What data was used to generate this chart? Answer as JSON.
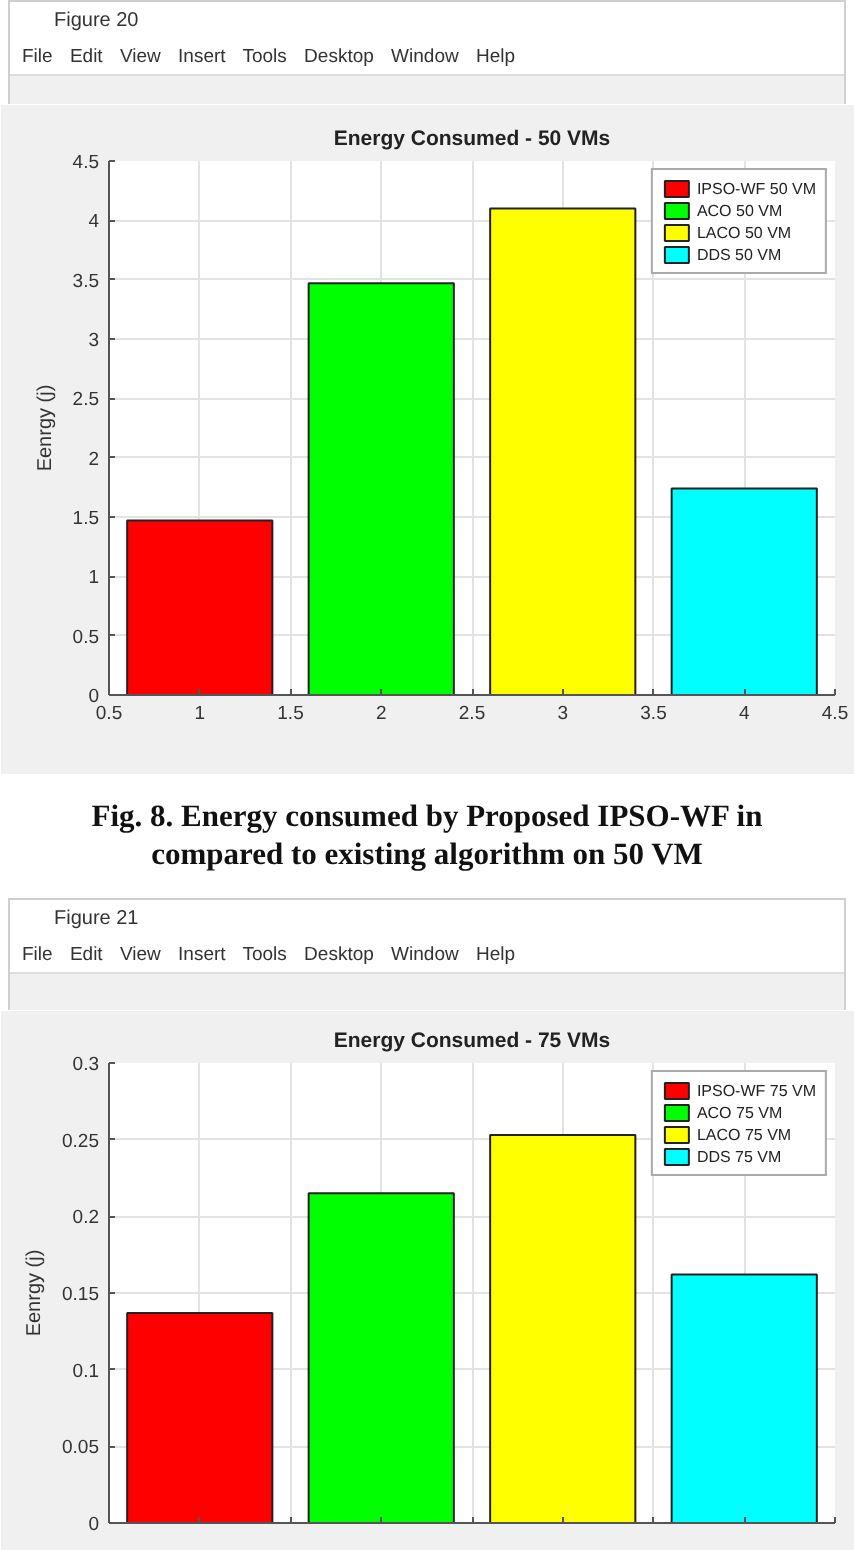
{
  "chart_data": [
    {
      "type": "bar",
      "title": "Energy Consumed - 50 VMs",
      "ylabel": "Eenrgy (j)",
      "series": [
        {
          "name": "IPSO-WF 50 VM",
          "color": "#ff0000",
          "x": [
            1
          ],
          "values": [
            1.47
          ]
        },
        {
          "name": "ACO 50 VM",
          "color": "#00ff00",
          "x": [
            2
          ],
          "values": [
            3.47
          ]
        },
        {
          "name": "LACO 50 VM",
          "color": "#ffff00",
          "x": [
            3
          ],
          "values": [
            4.1
          ]
        },
        {
          "name": "DDS 50 VM",
          "color": "#00ffff",
          "x": [
            4
          ],
          "values": [
            1.74
          ]
        }
      ],
      "xlim": [
        0.5,
        4.5
      ],
      "xticks": [
        0.5,
        1,
        1.5,
        2,
        2.5,
        3,
        3.5,
        4,
        4.5
      ],
      "ylim": [
        0,
        4.5
      ],
      "yticks": [
        0,
        0.5,
        1,
        1.5,
        2,
        2.5,
        3,
        3.5,
        4,
        4.5
      ],
      "grid": true,
      "legend": "top right",
      "annotations": [
        "Figure 20",
        "File Edit View Insert Tools Desktop Window Help",
        "Fig. 8. Energy consumed by Proposed IPSO-WF in compared to existing algorithm on 50 VM"
      ]
    },
    {
      "type": "bar",
      "title": "Energy Consumed - 75 VMs",
      "ylabel": "Eenrgy (j)",
      "series": [
        {
          "name": "IPSO-WF 75 VM",
          "color": "#ff0000",
          "x": [
            1
          ],
          "values": [
            0.137
          ]
        },
        {
          "name": "ACO 75 VM",
          "color": "#00ff00",
          "x": [
            2
          ],
          "values": [
            0.215
          ]
        },
        {
          "name": "LACO 75 VM",
          "color": "#ffff00",
          "x": [
            3
          ],
          "values": [
            0.253
          ]
        },
        {
          "name": "DDS 75 VM",
          "color": "#00ffff",
          "x": [
            4
          ],
          "values": [
            0.162
          ]
        }
      ],
      "xlim": [
        0.5,
        4.5
      ],
      "xticks": [
        {
          "value": 0.5,
          "label": null
        },
        {
          "value": 1,
          "label": null
        },
        {
          "value": 1.5,
          "label": null
        },
        {
          "value": 2,
          "label": null
        },
        {
          "value": 2.5,
          "label": null
        },
        {
          "value": 3,
          "label": null
        },
        {
          "value": 3.5,
          "label": null
        },
        {
          "value": 4,
          "label": null
        },
        {
          "value": 4.5,
          "label": null
        }
      ],
      "ylim": [
        0,
        0.3
      ],
      "yticks": [
        0,
        0.05,
        0.1,
        0.15,
        0.2,
        0.25,
        0.3
      ],
      "grid": true,
      "legend": "top right",
      "tick_labels": "y",
      "annotations": [
        "Figure 21",
        "File Edit View Insert Tools Desktop Window Help"
      ]
    }
  ]
}
